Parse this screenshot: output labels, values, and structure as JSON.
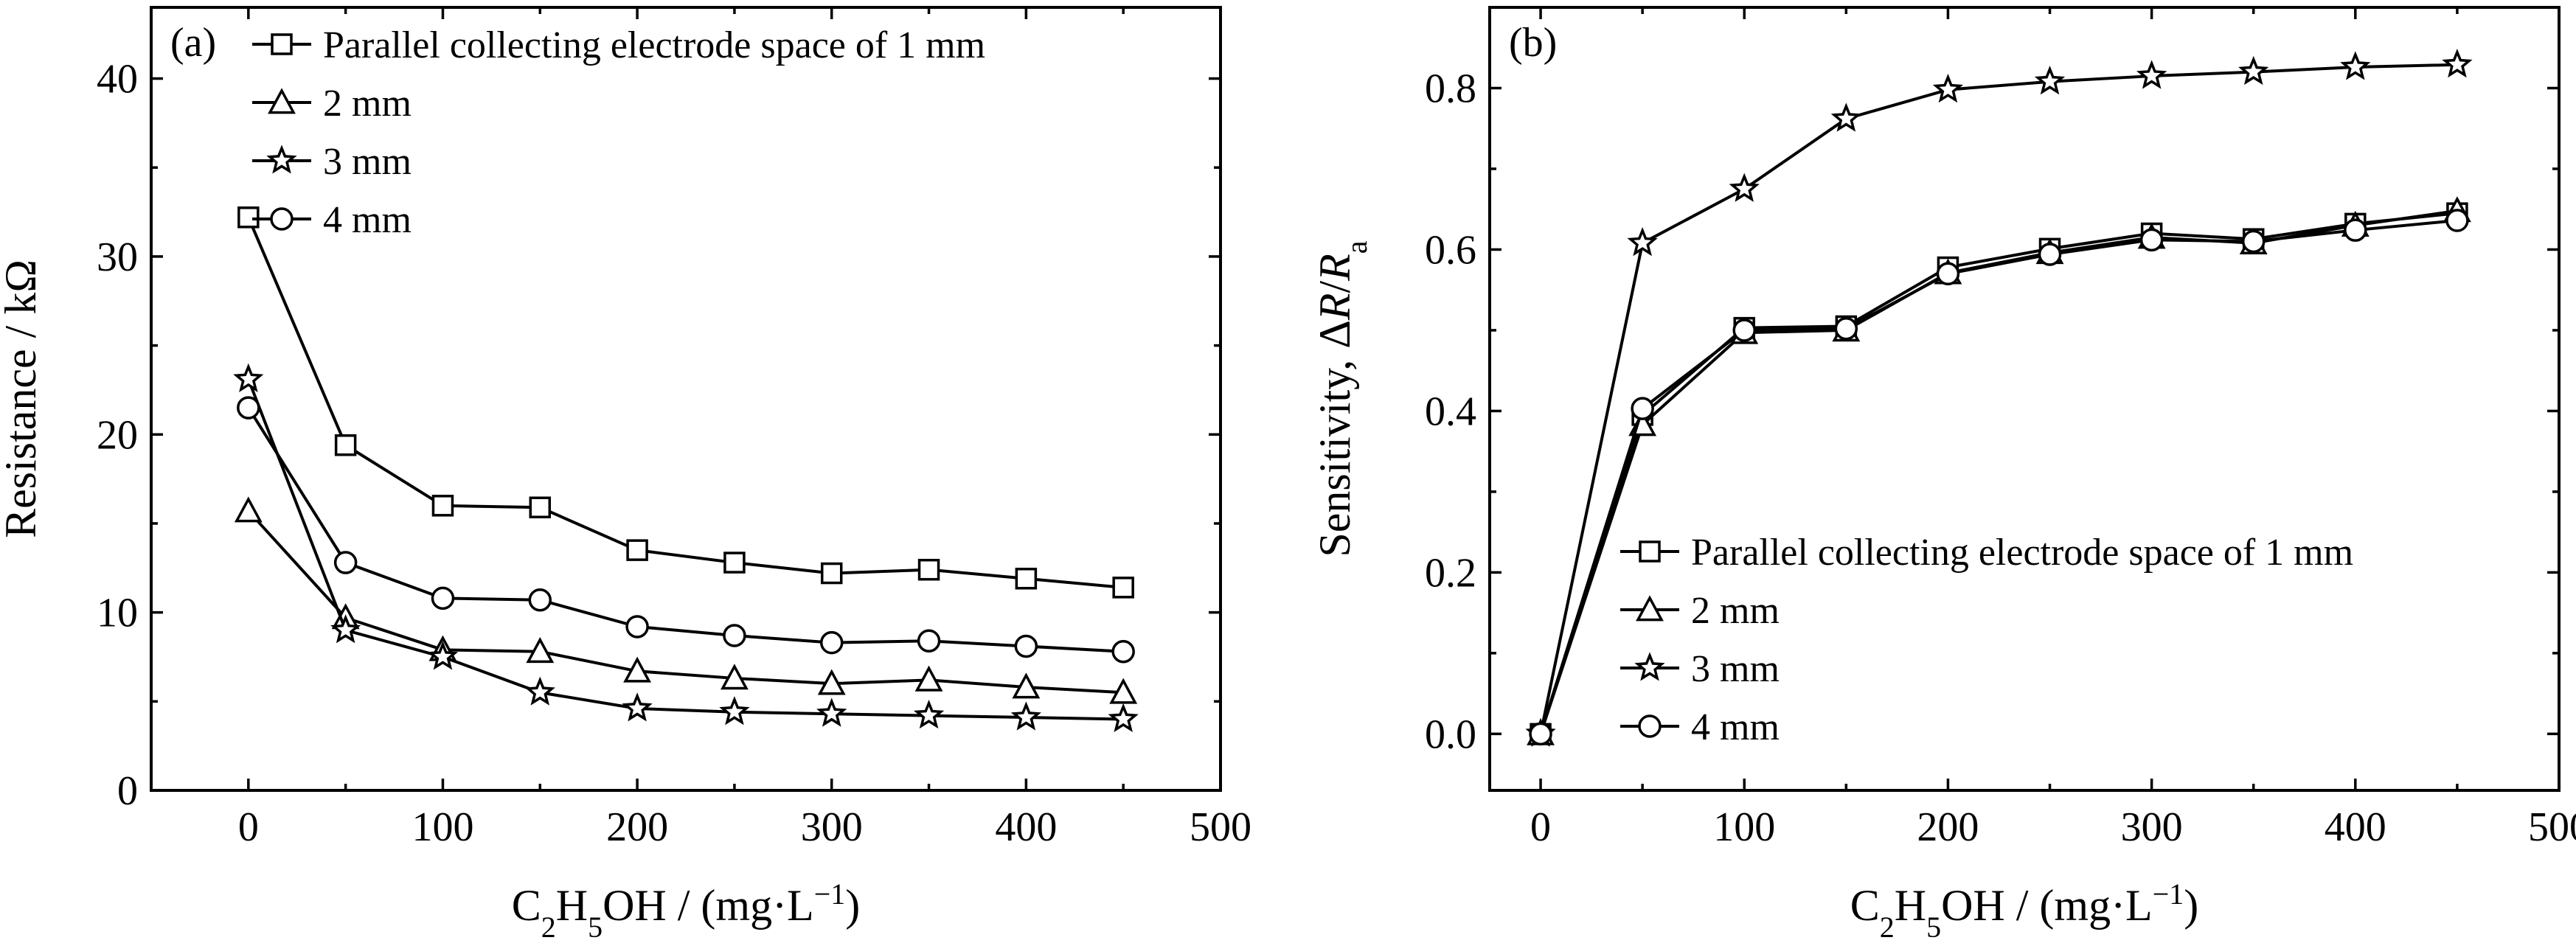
{
  "chart_data": [
    {
      "type": "line",
      "tag": "(a)",
      "xlabel": {
        "main": "C",
        "s1": "2",
        "m1": "H",
        "s2": "5",
        "m2": "OH / (mg·L",
        "sup": "−1",
        "end": ")"
      },
      "ylabel": "Resistance / kΩ",
      "x": [
        0,
        50,
        100,
        150,
        200,
        250,
        300,
        350,
        400,
        450
      ],
      "xlim": [
        -50,
        500
      ],
      "ylim": [
        0,
        44
      ],
      "xticks": [
        0,
        100,
        200,
        300,
        400,
        500
      ],
      "yticks": [
        0,
        10,
        20,
        30,
        40
      ],
      "legend_position": "top-left",
      "series": [
        {
          "name": "Parallel collecting electrode space of 1 mm",
          "marker": "square",
          "values": [
            32.2,
            19.4,
            16.0,
            15.9,
            13.5,
            12.8,
            12.2,
            12.4,
            11.9,
            11.4
          ]
        },
        {
          "name": "2 mm",
          "marker": "triangle",
          "values": [
            15.7,
            9.7,
            7.9,
            7.8,
            6.7,
            6.3,
            6.0,
            6.2,
            5.8,
            5.5
          ]
        },
        {
          "name": "3 mm",
          "marker": "star",
          "values": [
            23.1,
            9.0,
            7.5,
            5.5,
            4.6,
            4.4,
            4.3,
            4.2,
            4.1,
            4.0
          ]
        },
        {
          "name": "4 mm",
          "marker": "circle",
          "values": [
            21.5,
            12.8,
            10.8,
            10.7,
            9.2,
            8.7,
            8.3,
            8.4,
            8.1,
            7.8
          ]
        }
      ]
    },
    {
      "type": "line",
      "tag": "(b)",
      "xlabel": {
        "main": "C",
        "s1": "2",
        "m1": "H",
        "s2": "5",
        "m2": "OH / (mg·L",
        "sup": "−1",
        "end": ")"
      },
      "ylabel": {
        "pre": "Sensitivity, Δ",
        "r": "R",
        "slash": "/",
        "ra": "R",
        "sub": "a"
      },
      "x": [
        0,
        50,
        100,
        150,
        200,
        250,
        300,
        350,
        400,
        450
      ],
      "xlim": [
        -25,
        500
      ],
      "ylim": [
        -0.07,
        0.9
      ],
      "xticks": [
        0,
        100,
        200,
        300,
        400,
        500
      ],
      "yticks": [
        0.0,
        0.2,
        0.4,
        0.6,
        0.8
      ],
      "yticklabels": [
        "0.0",
        "0.2",
        "0.4",
        "0.6",
        "0.8"
      ],
      "legend_position": "bottom-right",
      "series": [
        {
          "name": "Parallel collecting electrode space of 1 mm",
          "marker": "square",
          "values": [
            0.0,
            0.395,
            0.503,
            0.505,
            0.578,
            0.601,
            0.62,
            0.613,
            0.632,
            0.645
          ]
        },
        {
          "name": "2 mm",
          "marker": "triangle",
          "values": [
            0.0,
            0.383,
            0.497,
            0.5,
            0.571,
            0.596,
            0.615,
            0.608,
            0.63,
            0.648
          ]
        },
        {
          "name": "3 mm",
          "marker": "star",
          "values": [
            0.0,
            0.608,
            0.675,
            0.762,
            0.798,
            0.808,
            0.815,
            0.82,
            0.826,
            0.829
          ]
        },
        {
          "name": "4 mm",
          "marker": "circle",
          "values": [
            0.0,
            0.403,
            0.5,
            0.502,
            0.57,
            0.594,
            0.612,
            0.61,
            0.624,
            0.636
          ]
        }
      ]
    }
  ]
}
